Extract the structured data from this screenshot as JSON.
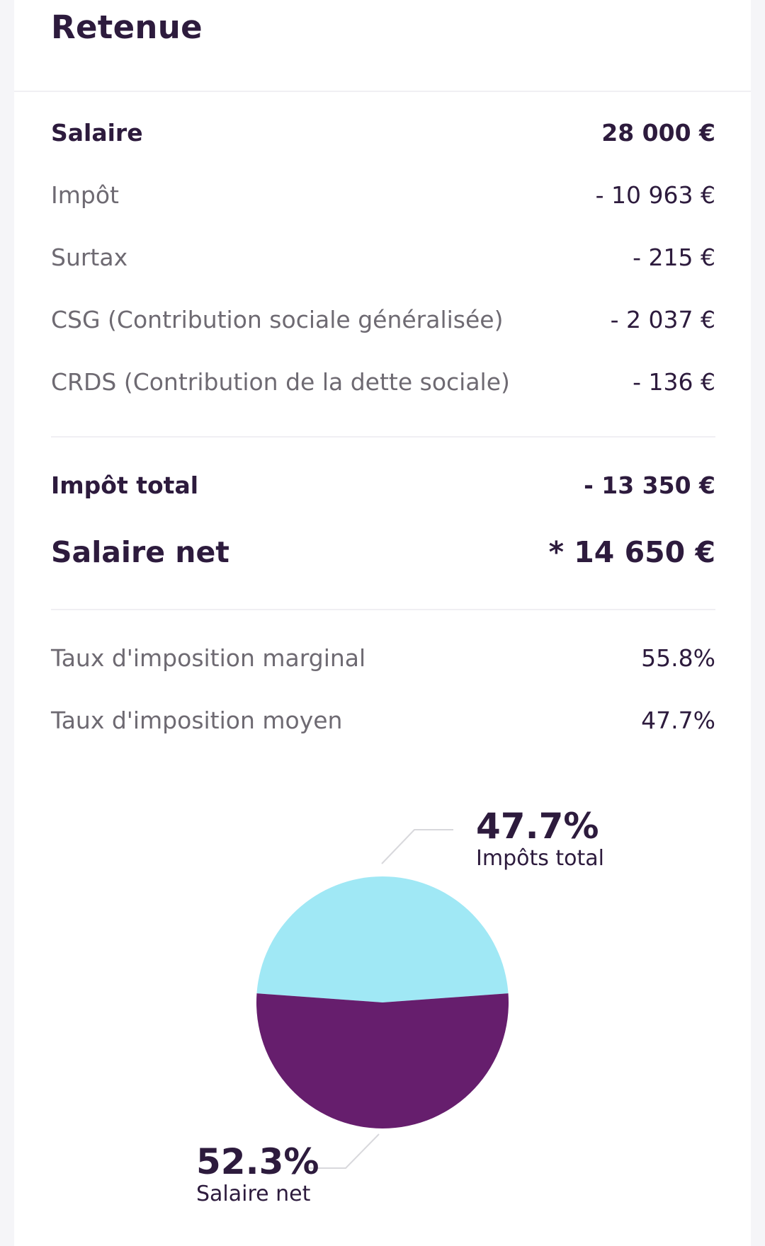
{
  "title": "Retenue",
  "breakdown": [
    {
      "label": "Salaire",
      "value": "28 000 €",
      "style": "bold"
    },
    {
      "label": "Impôt",
      "value": "- 10 963 €",
      "style": "light"
    },
    {
      "label": "Surtax",
      "value": "- 215 €",
      "style": "light"
    },
    {
      "label": "CSG (Contribution sociale généralisée)",
      "value": "- 2 037 €",
      "style": "light"
    },
    {
      "label": "CRDS (Contribution de la dette sociale)",
      "value": "- 136 €",
      "style": "light"
    }
  ],
  "totals": {
    "total_tax_label": "Impôt total",
    "total_tax_value": "- 13 350 €",
    "net_label": "Salaire net",
    "net_value": "* 14 650 €"
  },
  "rates": {
    "marginal_label": "Taux d'imposition marginal",
    "marginal_value": "55.8%",
    "average_label": "Taux d'imposition moyen",
    "average_value": "47.7%"
  },
  "colors": {
    "tax_slice": "#a0e8f5",
    "net_slice": "#661e6d",
    "leader_line": "#d8d8dc"
  },
  "chart_data": {
    "type": "pie",
    "slices": [
      {
        "name": "Impôts total",
        "value": 47.7,
        "label": "47.7%"
      },
      {
        "name": "Salaire net",
        "value": 52.3,
        "label": "52.3%"
      }
    ]
  }
}
